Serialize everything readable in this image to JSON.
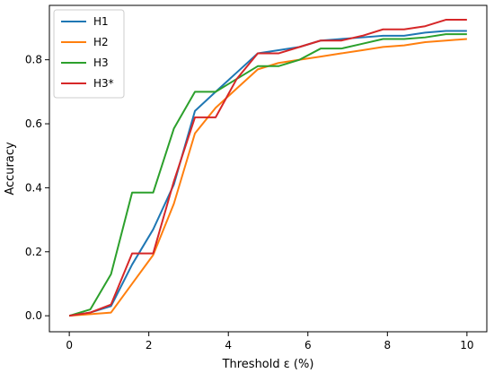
{
  "chart_data": {
    "type": "line",
    "xlabel": "Threshold ε (%)",
    "ylabel": "Accuracy",
    "xlim": [
      -0.5,
      10.5
    ],
    "ylim": [
      -0.05,
      0.97
    ],
    "xticks": [
      0,
      2,
      4,
      6,
      8,
      10
    ],
    "yticks": [
      0.0,
      0.2,
      0.4,
      0.6,
      0.8
    ],
    "xtick_labels": [
      "0",
      "2",
      "4",
      "6",
      "8",
      "10"
    ],
    "ytick_labels": [
      "0.0",
      "0.2",
      "0.4",
      "0.6",
      "0.8"
    ],
    "legend_position": "top-left",
    "grid": false,
    "series": [
      {
        "name": "H1",
        "color": "#1f77b4",
        "x": [
          0,
          0.53,
          1.05,
          1.58,
          2.11,
          2.63,
          3.16,
          3.68,
          4.21,
          4.74,
          5.26,
          5.79,
          6.32,
          6.84,
          7.37,
          7.89,
          8.42,
          8.95,
          9.47,
          10
        ],
        "y": [
          0.0,
          0.01,
          0.03,
          0.16,
          0.27,
          0.41,
          0.64,
          0.7,
          0.76,
          0.82,
          0.83,
          0.84,
          0.86,
          0.865,
          0.87,
          0.875,
          0.875,
          0.885,
          0.89,
          0.89
        ]
      },
      {
        "name": "H2",
        "color": "#ff7f0e",
        "x": [
          0,
          0.53,
          1.05,
          1.58,
          2.11,
          2.63,
          3.16,
          3.68,
          4.21,
          4.74,
          5.26,
          5.79,
          6.32,
          6.84,
          7.37,
          7.89,
          8.42,
          8.95,
          9.47,
          10
        ],
        "y": [
          0.0,
          0.005,
          0.01,
          0.1,
          0.19,
          0.35,
          0.57,
          0.65,
          0.71,
          0.77,
          0.79,
          0.8,
          0.81,
          0.82,
          0.83,
          0.84,
          0.845,
          0.855,
          0.86,
          0.865
        ]
      },
      {
        "name": "H3",
        "color": "#2ca02c",
        "x": [
          0,
          0.53,
          1.05,
          1.58,
          2.11,
          2.63,
          3.16,
          3.68,
          4.21,
          4.74,
          5.26,
          5.79,
          6.32,
          6.84,
          7.37,
          7.89,
          8.42,
          8.95,
          9.47,
          10
        ],
        "y": [
          0.0,
          0.02,
          0.13,
          0.385,
          0.385,
          0.585,
          0.7,
          0.7,
          0.74,
          0.78,
          0.78,
          0.8,
          0.835,
          0.835,
          0.85,
          0.865,
          0.865,
          0.87,
          0.88,
          0.88
        ]
      },
      {
        "name": "H3*",
        "color": "#d62728",
        "x": [
          0,
          0.53,
          1.05,
          1.58,
          2.11,
          2.63,
          3.16,
          3.68,
          4.21,
          4.74,
          5.26,
          5.79,
          6.32,
          6.84,
          7.37,
          7.89,
          8.42,
          8.95,
          9.47,
          10
        ],
        "y": [
          0.0,
          0.01,
          0.035,
          0.195,
          0.195,
          0.42,
          0.62,
          0.62,
          0.74,
          0.82,
          0.82,
          0.84,
          0.86,
          0.86,
          0.875,
          0.895,
          0.895,
          0.905,
          0.925,
          0.925
        ]
      }
    ]
  }
}
